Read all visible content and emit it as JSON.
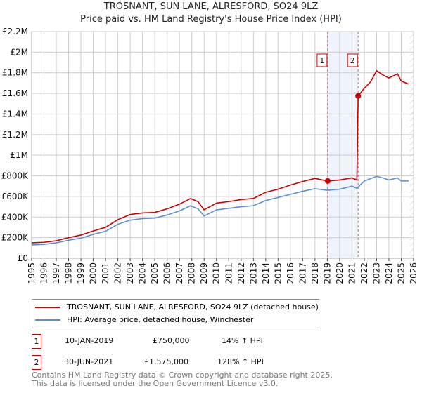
{
  "chart_data": {
    "type": "line",
    "title": "TROSNANT, SUN LANE, ALRESFORD, SO24 9LZ",
    "subtitle": "Price paid vs. HM Land Registry's House Price Index (HPI)",
    "xlim": [
      1995,
      2026
    ],
    "ylim": [
      0,
      2200000
    ],
    "grid": true,
    "y_ticks": [
      {
        "v": 0,
        "label": "£0"
      },
      {
        "v": 200000,
        "label": "£200K"
      },
      {
        "v": 400000,
        "label": "£400K"
      },
      {
        "v": 600000,
        "label": "£600K"
      },
      {
        "v": 800000,
        "label": "£800K"
      },
      {
        "v": 1000000,
        "label": "£1M"
      },
      {
        "v": 1200000,
        "label": "£1.2M"
      },
      {
        "v": 1400000,
        "label": "£1.4M"
      },
      {
        "v": 1600000,
        "label": "£1.6M"
      },
      {
        "v": 1800000,
        "label": "£1.8M"
      },
      {
        "v": 2000000,
        "label": "£2M"
      },
      {
        "v": 2200000,
        "label": "£2.2M"
      }
    ],
    "x_ticks": [
      "1995",
      "1996",
      "1997",
      "1998",
      "1999",
      "2000",
      "2001",
      "2002",
      "2003",
      "2004",
      "2005",
      "2006",
      "2007",
      "2008",
      "2009",
      "2010",
      "2011",
      "2012",
      "2013",
      "2014",
      "2015",
      "2016",
      "2017",
      "2018",
      "2019",
      "2020",
      "2021",
      "2022",
      "2023",
      "2024",
      "2025",
      "2026"
    ],
    "series": [
      {
        "name": "TROSNANT, SUN LANE, ALRESFORD, SO24 9LZ (detached house)",
        "color": "#cc0000",
        "x": [
          1995,
          1996,
          1997,
          1998,
          1999,
          2000,
          2001,
          2002,
          2003,
          2004,
          2005,
          2006,
          2007,
          2007.9,
          2008.5,
          2009,
          2010,
          2011,
          2012,
          2013,
          2014,
          2015,
          2016,
          2017,
          2018,
          2019.03,
          2020,
          2021,
          2021.4,
          2021.5,
          2022,
          2022.5,
          2023,
          2023.5,
          2024,
          2024.7,
          2025,
          2025.6
        ],
        "y": [
          150000,
          155000,
          170000,
          200000,
          225000,
          265000,
          300000,
          375000,
          425000,
          440000,
          445000,
          480000,
          525000,
          580000,
          550000,
          470000,
          535000,
          550000,
          570000,
          580000,
          640000,
          670000,
          710000,
          745000,
          775000,
          750000,
          760000,
          780000,
          760000,
          1575000,
          1650000,
          1710000,
          1820000,
          1780000,
          1750000,
          1790000,
          1720000,
          1690000
        ]
      },
      {
        "name": "HPI: Average price, detached house, Winchester",
        "color": "#5b8fd0",
        "x": [
          1995,
          1996,
          1997,
          1998,
          1999,
          2000,
          2001,
          2002,
          2003,
          2004,
          2005,
          2006,
          2007,
          2007.9,
          2008.5,
          2009,
          2010,
          2011,
          2012,
          2013,
          2014,
          2015,
          2016,
          2017,
          2018,
          2019,
          2020,
          2021,
          2021.4,
          2022,
          2023,
          2023.5,
          2024,
          2024.7,
          2025,
          2025.6
        ],
        "y": [
          130000,
          135000,
          150000,
          175000,
          195000,
          232000,
          262000,
          330000,
          370000,
          385000,
          390000,
          420000,
          460000,
          510000,
          480000,
          410000,
          470000,
          485000,
          500000,
          510000,
          560000,
          590000,
          620000,
          650000,
          675000,
          660000,
          670000,
          700000,
          680000,
          750000,
          795000,
          780000,
          760000,
          780000,
          750000,
          750000
        ]
      }
    ],
    "annotations": [
      {
        "label": "1",
        "x": 2019.03,
        "y": 750000,
        "date": "10-JAN-2019",
        "price": "£750,000",
        "hpi": "14% ↑ HPI"
      },
      {
        "label": "2",
        "x": 2021.5,
        "y": 1575000,
        "date": "30-JUN-2021",
        "price": "£1,575,000",
        "hpi": "128% ↑ HPI"
      }
    ],
    "legend_position": "bottom"
  },
  "footer": {
    "line1": "Contains HM Land Registry data © Crown copyright and database right 2025.",
    "line2": "This data is licensed under the Open Government Licence v3.0."
  }
}
